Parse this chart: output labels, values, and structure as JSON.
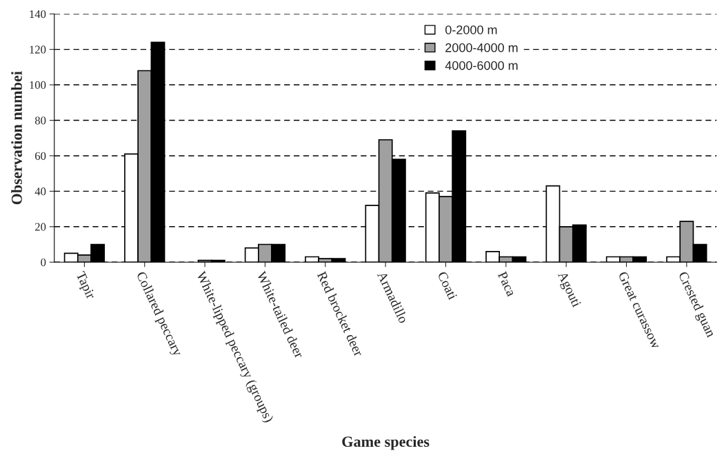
{
  "chart_data": {
    "type": "bar",
    "xlabel": "Game species",
    "ylabel": "Observation numbei",
    "categories": [
      "Tapir",
      "Collared peccary",
      "White-lipped peccary (groups)",
      "White-tailed deer",
      "Red brocket deer",
      "Armadillo",
      "Coati",
      "Paca",
      "Agouti",
      "Great curassow",
      "Crested guan"
    ],
    "series": [
      {
        "name": "0-2000 m",
        "color": "#ffffff",
        "values": [
          5,
          61,
          null,
          8,
          3,
          32,
          39,
          6,
          43,
          3,
          3
        ]
      },
      {
        "name": "2000-4000 m",
        "color": "#a0a0a0",
        "values": [
          4,
          108,
          1,
          10,
          2,
          69,
          37,
          3,
          20,
          3,
          23
        ]
      },
      {
        "name": "4000-6000 m",
        "color": "#000000",
        "values": [
          10,
          124,
          1,
          10,
          2,
          58,
          74,
          3,
          21,
          3,
          10
        ]
      }
    ],
    "ylim": [
      0,
      140
    ],
    "yticks": [
      0,
      20,
      40,
      60,
      80,
      100,
      120,
      140
    ],
    "grid": "y",
    "legend": "top"
  }
}
